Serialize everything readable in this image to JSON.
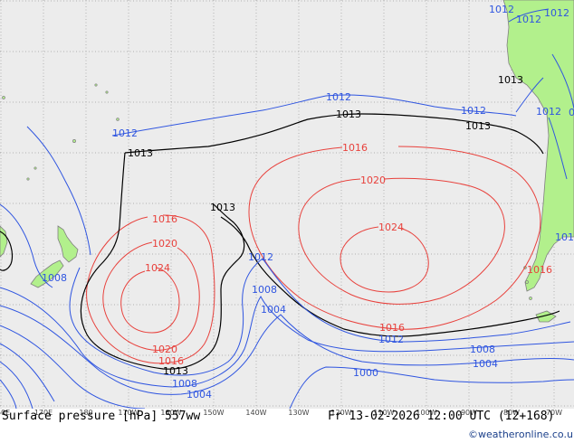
{
  "title": "Surface pressure [hPa] 557ww",
  "valid_time": "Fr 13-02-2026 12:00 UTC (12+168)",
  "credit": "©weatheronline.co.uk",
  "colors": {
    "ocean": "#ececec",
    "land": "#b2f08c",
    "grid": "#9a9a9a",
    "high_isobar": "#e8413c",
    "low_isobar": "#2f55e0",
    "ref_isobar": "#000000",
    "coast": "#808080"
  },
  "lon_ticks": [
    "160E",
    "170E",
    "180",
    "170W",
    "160W",
    "150W",
    "140W",
    "130W",
    "120W",
    "110W",
    "100W",
    "90W",
    "80W",
    "70W"
  ],
  "isobar_labels": {
    "red": [
      "1016",
      "1020",
      "1024",
      "1016",
      "1020",
      "1024",
      "1020",
      "1016",
      "1016",
      "1016"
    ],
    "black": [
      "1013",
      "1013",
      "1013",
      "1013",
      "1013",
      "1013"
    ],
    "blue": [
      "1012",
      "1012",
      "1012",
      "1012",
      "1012",
      "1012",
      "1012",
      "1008",
      "1004",
      "1008",
      "1004",
      "1008",
      "1004",
      "1000",
      "1008",
      "1012",
      "1012",
      "101",
      "0"
    ]
  }
}
